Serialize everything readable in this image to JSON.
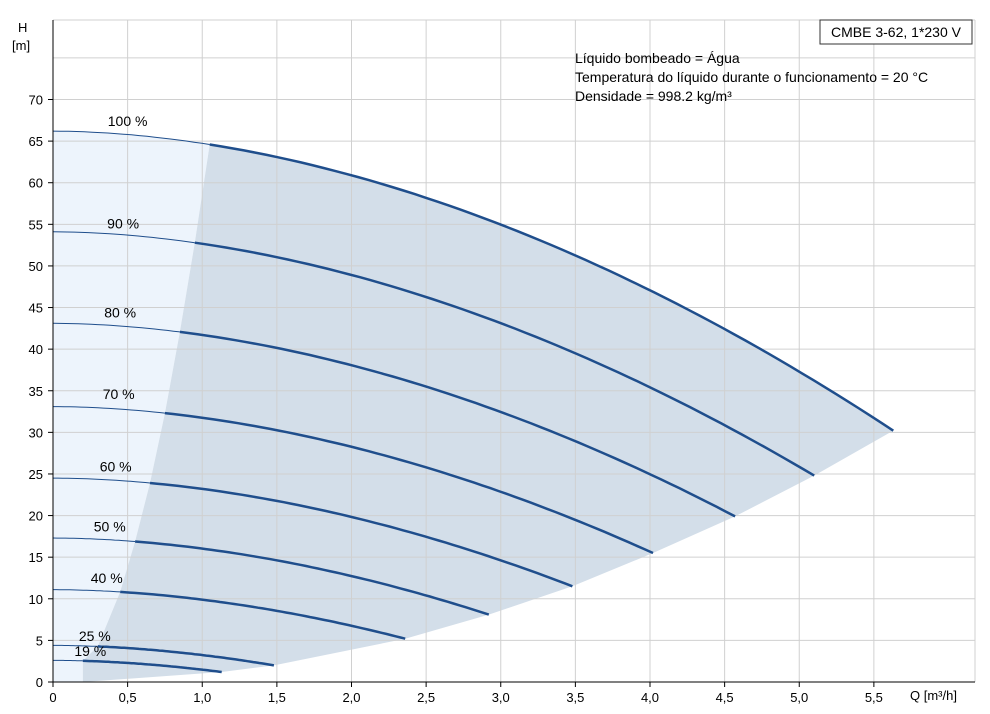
{
  "chart_data": {
    "type": "line",
    "title": "CMBE 3-62, 1*230 V",
    "annotations": [
      "Líquido bombeado = Água",
      "Temperatura do líquido durante o funcionamento = 20 °C",
      "Densidade = 998.2 kg/m³"
    ],
    "ylabel": "H",
    "yunit": "[m]",
    "xlabel": "Q [m³/h]",
    "xlim": [
      0,
      6.1
    ],
    "ylim": [
      0,
      79
    ],
    "xticks": [
      0,
      0.5,
      1.0,
      1.5,
      2.0,
      2.5,
      3.0,
      3.5,
      4.0,
      4.5,
      5.0,
      5.5
    ],
    "xtick_labels": [
      "0",
      "0,5",
      "1,0",
      "1,5",
      "2,0",
      "2,5",
      "3,0",
      "3,5",
      "4,0",
      "4,5",
      "5,0",
      "5,5"
    ],
    "yticks": [
      0,
      5,
      10,
      15,
      20,
      25,
      30,
      35,
      40,
      45,
      50,
      55,
      60,
      65,
      70
    ],
    "ytick_labels": [
      "0",
      "5",
      "10",
      "15",
      "20",
      "25",
      "30",
      "35",
      "40",
      "45",
      "50",
      "55",
      "60",
      "65",
      "70"
    ],
    "grid": true,
    "colors": {
      "curve": "#1f4e8c",
      "operating_region": "#d3dee9",
      "low_flow_region": "#edf4fc",
      "grid": "#d0d0d0"
    },
    "series": [
      {
        "name": "100 %",
        "label_at": [
          0.5,
          66.8
        ],
        "shut_off": 66.2,
        "min_q": 1.05,
        "end": [
          5.63,
          30.2
        ]
      },
      {
        "name": "90 %",
        "label_at": [
          0.47,
          54.5
        ],
        "shut_off": 54.1,
        "min_q": 0.95,
        "end": [
          5.1,
          24.8
        ]
      },
      {
        "name": "80 %",
        "label_at": [
          0.45,
          43.8
        ],
        "shut_off": 43.1,
        "min_q": 0.85,
        "end": [
          4.57,
          19.9
        ]
      },
      {
        "name": "70 %",
        "label_at": [
          0.44,
          34.0
        ],
        "shut_off": 33.1,
        "min_q": 0.75,
        "end": [
          4.02,
          15.5
        ]
      },
      {
        "name": "60 %",
        "label_at": [
          0.42,
          25.3
        ],
        "shut_off": 24.5,
        "min_q": 0.65,
        "end": [
          3.48,
          11.5
        ]
      },
      {
        "name": "50 %",
        "label_at": [
          0.38,
          18.1
        ],
        "shut_off": 17.3,
        "min_q": 0.55,
        "end": [
          2.92,
          8.1
        ]
      },
      {
        "name": "40 %",
        "label_at": [
          0.36,
          11.9
        ],
        "shut_off": 11.1,
        "min_q": 0.45,
        "end": [
          2.36,
          5.2
        ]
      },
      {
        "name": "25 %",
        "label_at": [
          0.28,
          4.9
        ],
        "shut_off": 4.4,
        "min_q": 0.3,
        "end": [
          1.48,
          2.0
        ]
      },
      {
        "name": "19 %",
        "label_at": [
          0.25,
          3.1
        ],
        "shut_off": 2.6,
        "min_q": 0.2,
        "end": [
          1.13,
          1.2
        ]
      }
    ]
  }
}
